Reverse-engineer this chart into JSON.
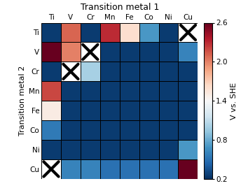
{
  "metals": [
    "Ti",
    "V",
    "Cr",
    "Mn",
    "Fe",
    "Co",
    "Ni",
    "Cu"
  ],
  "matrix": [
    [
      0.25,
      2.1,
      0.25,
      2.3,
      1.6,
      0.7,
      0.25,
      null
    ],
    [
      2.6,
      2.0,
      null,
      0.25,
      0.25,
      0.25,
      0.25,
      0.6
    ],
    [
      0.25,
      null,
      1.0,
      0.25,
      0.25,
      0.25,
      0.25,
      0.25
    ],
    [
      2.2,
      0.25,
      0.25,
      0.25,
      0.25,
      0.25,
      0.25,
      0.25
    ],
    [
      1.5,
      0.25,
      0.25,
      0.25,
      0.25,
      0.25,
      0.25,
      0.25
    ],
    [
      0.55,
      0.25,
      0.25,
      0.25,
      0.25,
      0.25,
      0.25,
      0.25
    ],
    [
      0.25,
      0.25,
      0.25,
      0.25,
      0.25,
      0.25,
      0.25,
      0.7
    ],
    [
      null,
      0.6,
      0.6,
      0.5,
      0.5,
      0.5,
      0.5,
      2.6
    ]
  ],
  "vmin": 0.2,
  "vmax": 2.6,
  "cmap": "RdBu_r",
  "title": "Transition metal 1",
  "ylabel": "Transition metal 2",
  "colorbar_label": "V vs. SHE",
  "colorbar_ticks": [
    0.2,
    0.8,
    1.4,
    2.0,
    2.6
  ],
  "figsize": [
    3.44,
    2.66
  ],
  "dpi": 100,
  "title_fontsize": 9,
  "tick_fontsize": 7.5,
  "ylabel_fontsize": 8,
  "cbar_fontsize": 7.5,
  "cbar_label_fontsize": 8
}
